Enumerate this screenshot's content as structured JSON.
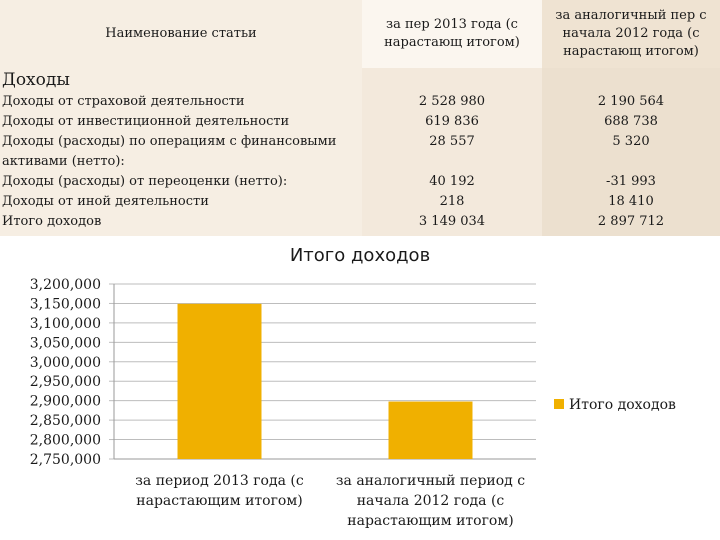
{
  "table": {
    "header": {
      "name": "Наименование статьи",
      "col1": "за пер 2013 года (с нарастающ итогом)",
      "col2": "за аналогичный пер с начала 2012 года (с нарастающ итогом)"
    },
    "section_title": "Доходы",
    "rows": [
      {
        "label": "Доходы от страховой деятельности",
        "v1": "2 528 980",
        "v2": "2 190 564"
      },
      {
        "label": "Доходы от инвестиционной деятельности",
        "v1": "619 836",
        "v2": "688 738"
      },
      {
        "label": "Доходы (расходы) по операциям с финансовыми",
        "v1": "28 557",
        "v2": "5 320"
      },
      {
        "label": "активами (нетто):",
        "v1": "",
        "v2": ""
      },
      {
        "label": "Доходы (расходы) от переоценки (нетто):",
        "v1": "40 192",
        "v2": "-31 993"
      },
      {
        "label": "Доходы от иной деятельности",
        "v1": "218",
        "v2": "18 410"
      },
      {
        "label": "Итого доходов",
        "v1": "3 149 034",
        "v2": "2 897 712"
      }
    ]
  },
  "chart_data": {
    "type": "bar",
    "title": "Итого доходов",
    "categories": [
      [
        "за период 2013 года (с",
        "нарастающим итогом)"
      ],
      [
        "за аналогичный период с",
        "начала 2012 года (с",
        "нарастающим итогом)"
      ]
    ],
    "series": [
      {
        "name": "Итого доходов",
        "values": [
          3149034,
          2897712
        ]
      }
    ],
    "ylim": [
      2750000,
      3200000
    ],
    "yticks": [
      "3,200,000",
      "3,150,000",
      "3,100,000",
      "3,050,000",
      "3,000,000",
      "2,950,000",
      "2,900,000",
      "2,850,000",
      "2,800,000",
      "2,750,000"
    ],
    "ytick_values": [
      3200000,
      3150000,
      3100000,
      3050000,
      3000000,
      2950000,
      2900000,
      2850000,
      2800000,
      2750000
    ],
    "grid": true,
    "legend": "right",
    "bar_color": "#f0b000",
    "grid_color": "#bdbdbd"
  }
}
